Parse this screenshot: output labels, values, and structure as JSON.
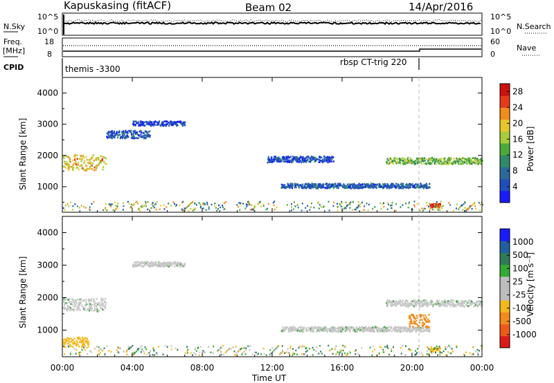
{
  "header": {
    "station": "Kapuskasing (fitACF)",
    "beam": "Beam 02",
    "date": "14/Apr/2016"
  },
  "labels": {
    "nsky": "N.Sky",
    "nsky_hi": "10^5",
    "nsky_lo": "10^0",
    "nsearch_hi": "10^5",
    "nsearch_lo": "10^0",
    "nsearch": "N.Search",
    "freq_line1": "Freq.",
    "freq_line2": "[MHz]",
    "freq_hi": "18",
    "freq_lo": "8",
    "nave_hi": "60",
    "nave_lo": "0",
    "nave": "Nave",
    "cpid": "CPID",
    "cpid_a": "themis -3300",
    "cpid_b": "rbsp CT-trig 220",
    "ylabel_top": "Slant Range [km]",
    "ylabel_bot": "Slant Range [km]",
    "xlabel": "Time UT",
    "cbar_power": "Power [dB]",
    "cbar_vel": "Velocity [m s⁻¹]"
  },
  "colors": {
    "power": [
      "#1a1aff",
      "#1f4fbf",
      "#2a6a9a",
      "#2e8a6a",
      "#4caa3a",
      "#a6cc3a",
      "#e8c62a",
      "#f28c1a",
      "#e83a1a",
      "#cc1111"
    ],
    "velocity": [
      "#1a1aff",
      "#1f5fa0",
      "#2f7a5a",
      "#33aa33",
      "#bdbdbd",
      "#bdbdbd",
      "#f5b81a",
      "#f38a1a",
      "#ef5a1a",
      "#dd1a1a"
    ],
    "gray": "#c8c8c8"
  },
  "chart_data": [
    {
      "type": "heatmap",
      "name": "power",
      "xlabel": "Time UT",
      "ylabel": "Slant Range [km]",
      "x_ticks": [
        "00:00",
        "04:00",
        "08:00",
        "12:00",
        "16:00",
        "20:00",
        "00:00"
      ],
      "x_range_hours": [
        0,
        24
      ],
      "y_ticks": [
        1000,
        2000,
        3000,
        4000
      ],
      "y_range_km": [
        180,
        4500
      ],
      "colorbar": {
        "label": "Power [dB]",
        "ticks": [
          4,
          8,
          12,
          16,
          20,
          24,
          28
        ],
        "range": [
          0,
          30
        ]
      },
      "features": [
        {
          "label": "",
          "t0": 0.0,
          "t1": 2.5,
          "r_center": 1800,
          "width": 500,
          "value": 20
        },
        {
          "label": "",
          "t0": 2.5,
          "t1": 5.0,
          "r_center": 2700,
          "width": 250,
          "value": 6
        },
        {
          "label": "",
          "t0": 4.0,
          "t1": 7.0,
          "r_center": 3050,
          "width": 150,
          "value": 4
        },
        {
          "label": "",
          "t0": 11.7,
          "t1": 15.5,
          "r_center": 1900,
          "width": 200,
          "value": 5
        },
        {
          "label": "",
          "t0": 12.5,
          "t1": 21.0,
          "r_center": 1050,
          "width": 150,
          "value": 6
        },
        {
          "label": "",
          "t0": 18.5,
          "t1": 24.0,
          "r_center": 1850,
          "width": 200,
          "value": 14
        },
        {
          "label": "",
          "t0": 21.0,
          "t1": 21.6,
          "r_center": 420,
          "width": 120,
          "value": 28
        }
      ]
    },
    {
      "type": "heatmap",
      "name": "velocity",
      "xlabel": "Time UT",
      "ylabel": "Slant Range [km]",
      "x_ticks": [
        "00:00",
        "04:00",
        "08:00",
        "12:00",
        "16:00",
        "20:00",
        "00:00"
      ],
      "x_range_hours": [
        0,
        24
      ],
      "y_ticks": [
        1000,
        2000,
        3000,
        4000
      ],
      "y_range_km": [
        180,
        4500
      ],
      "colorbar": {
        "label": "Velocity [m s⁻¹]",
        "ticks": [
          1000,
          500,
          100,
          25,
          -25,
          -100,
          -500,
          -1000
        ]
      },
      "features": [
        {
          "label": "",
          "t0": 0.0,
          "t1": 2.5,
          "r_center": 1800,
          "width": 400,
          "value": 0
        },
        {
          "label": "",
          "t0": 4.0,
          "t1": 7.0,
          "r_center": 3050,
          "width": 150,
          "value": 0
        },
        {
          "label": "",
          "t0": 12.5,
          "t1": 21.0,
          "r_center": 1050,
          "width": 150,
          "value": 0
        },
        {
          "label": "",
          "t0": 18.5,
          "t1": 24.0,
          "r_center": 1850,
          "width": 200,
          "value": 0
        },
        {
          "label": "",
          "t0": 19.8,
          "t1": 21.0,
          "r_center": 1300,
          "width": 400,
          "value": -600
        },
        {
          "label": "",
          "t0": 21.0,
          "t1": 21.6,
          "r_center": 420,
          "width": 120,
          "value": -200
        },
        {
          "label": "",
          "t0": 0.0,
          "t1": 1.5,
          "r_center": 650,
          "width": 300,
          "value": -150
        }
      ]
    }
  ]
}
